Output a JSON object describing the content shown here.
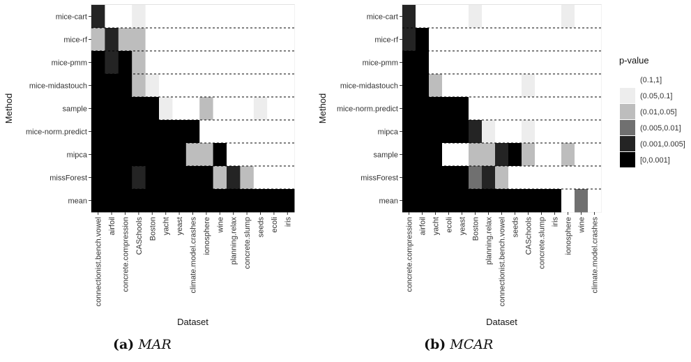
{
  "levels": [
    "[0,0.001]",
    "(0.001,0.005]",
    "(0.005,0.01]",
    "(0.01,0.05]",
    "(0.05,0.1]",
    "(0.1,1]"
  ],
  "colors": [
    "#000000",
    "#242424",
    "#707070",
    "#bdbdbd",
    "#ededed",
    "#ffffff"
  ],
  "legend": {
    "title": "p-value",
    "entries": [
      "(0.1,1]",
      "(0.05,0.1]",
      "(0.01,0.05]",
      "(0.005,0.01]",
      "(0.001,0.005]",
      "[0,0.001]"
    ]
  },
  "captions": [
    {
      "label": "(a)",
      "name": "MAR"
    },
    {
      "label": "(b)",
      "name": "MCAR"
    }
  ],
  "chart_data": [
    {
      "type": "heatmap",
      "title": "",
      "xlabel": "Dataset",
      "ylabel": "Method",
      "x": [
        "connectionist.bench.vowel",
        "airfoil",
        "concrete.compression",
        "CASchools",
        "Boston",
        "yacht",
        "yeast",
        "climate.model.crashes",
        "ionosphere",
        "wine",
        "planning.relax",
        "concrete.slump",
        "seeds",
        "ecoli",
        "iris"
      ],
      "y": [
        "mice-cart",
        "mice-rf",
        "mice-pmm",
        "mice-midastouch",
        "sample",
        "mice-norm.predict",
        "mipca",
        "missForest",
        "mean"
      ],
      "values": [
        [
          1,
          5,
          5,
          4,
          5,
          5,
          5,
          5,
          5,
          5,
          5,
          5,
          5,
          5,
          5
        ],
        [
          3,
          1,
          3,
          3,
          5,
          5,
          5,
          5,
          5,
          5,
          5,
          5,
          5,
          5,
          5
        ],
        [
          0,
          1,
          0,
          3,
          5,
          5,
          5,
          5,
          5,
          5,
          5,
          5,
          5,
          5,
          5
        ],
        [
          0,
          0,
          0,
          3,
          4,
          5,
          5,
          5,
          5,
          5,
          5,
          5,
          5,
          5,
          5
        ],
        [
          0,
          0,
          0,
          0,
          0,
          4,
          5,
          5,
          3,
          5,
          5,
          5,
          4,
          5,
          5
        ],
        [
          0,
          0,
          0,
          0,
          0,
          0,
          0,
          0,
          5,
          5,
          5,
          5,
          5,
          5,
          5
        ],
        [
          0,
          0,
          0,
          0,
          0,
          0,
          0,
          3,
          3,
          0,
          5,
          5,
          5,
          5,
          5
        ],
        [
          0,
          0,
          0,
          1,
          0,
          0,
          0,
          0,
          0,
          3,
          1,
          3,
          5,
          5,
          5
        ],
        [
          0,
          0,
          0,
          0,
          0,
          0,
          0,
          0,
          0,
          0,
          0,
          0,
          0,
          0,
          0
        ]
      ]
    },
    {
      "type": "heatmap",
      "title": "",
      "xlabel": "Dataset",
      "ylabel": "Method",
      "x": [
        "concrete.compression",
        "airfoil",
        "yacht",
        "ecoli",
        "yeast",
        "Boston",
        "planning.relax",
        "connectionist.bench.vowel",
        "seeds",
        "CASchools",
        "concrete.slump",
        "iris",
        "ionosphere",
        "wine",
        "climate.model.crashes"
      ],
      "y": [
        "mice-cart",
        "mice-rf",
        "mice-pmm",
        "mice-midastouch",
        "mice-norm.predict",
        "mipca",
        "sample",
        "missForest",
        "mean"
      ],
      "values": [
        [
          1,
          5,
          5,
          5,
          5,
          4,
          5,
          5,
          5,
          5,
          5,
          5,
          4,
          5,
          5
        ],
        [
          1,
          0,
          5,
          5,
          5,
          5,
          5,
          5,
          5,
          5,
          5,
          5,
          5,
          5,
          5
        ],
        [
          0,
          0,
          5,
          5,
          5,
          5,
          5,
          5,
          5,
          5,
          5,
          5,
          5,
          5,
          5
        ],
        [
          0,
          0,
          3,
          5,
          5,
          5,
          5,
          5,
          5,
          4,
          5,
          5,
          5,
          5,
          5
        ],
        [
          0,
          0,
          0,
          0,
          0,
          5,
          5,
          5,
          5,
          5,
          5,
          5,
          5,
          5,
          5
        ],
        [
          0,
          0,
          0,
          0,
          0,
          1,
          4,
          5,
          5,
          4,
          5,
          5,
          5,
          5,
          5
        ],
        [
          0,
          0,
          0,
          5,
          5,
          3,
          3,
          1,
          0,
          3,
          5,
          5,
          3,
          5,
          5
        ],
        [
          0,
          0,
          0,
          0,
          0,
          2,
          1,
          3,
          5,
          5,
          5,
          5,
          5,
          5,
          5
        ],
        [
          0,
          0,
          0,
          0,
          0,
          0,
          0,
          0,
          0,
          0,
          0,
          0,
          5,
          2,
          5
        ]
      ]
    }
  ]
}
